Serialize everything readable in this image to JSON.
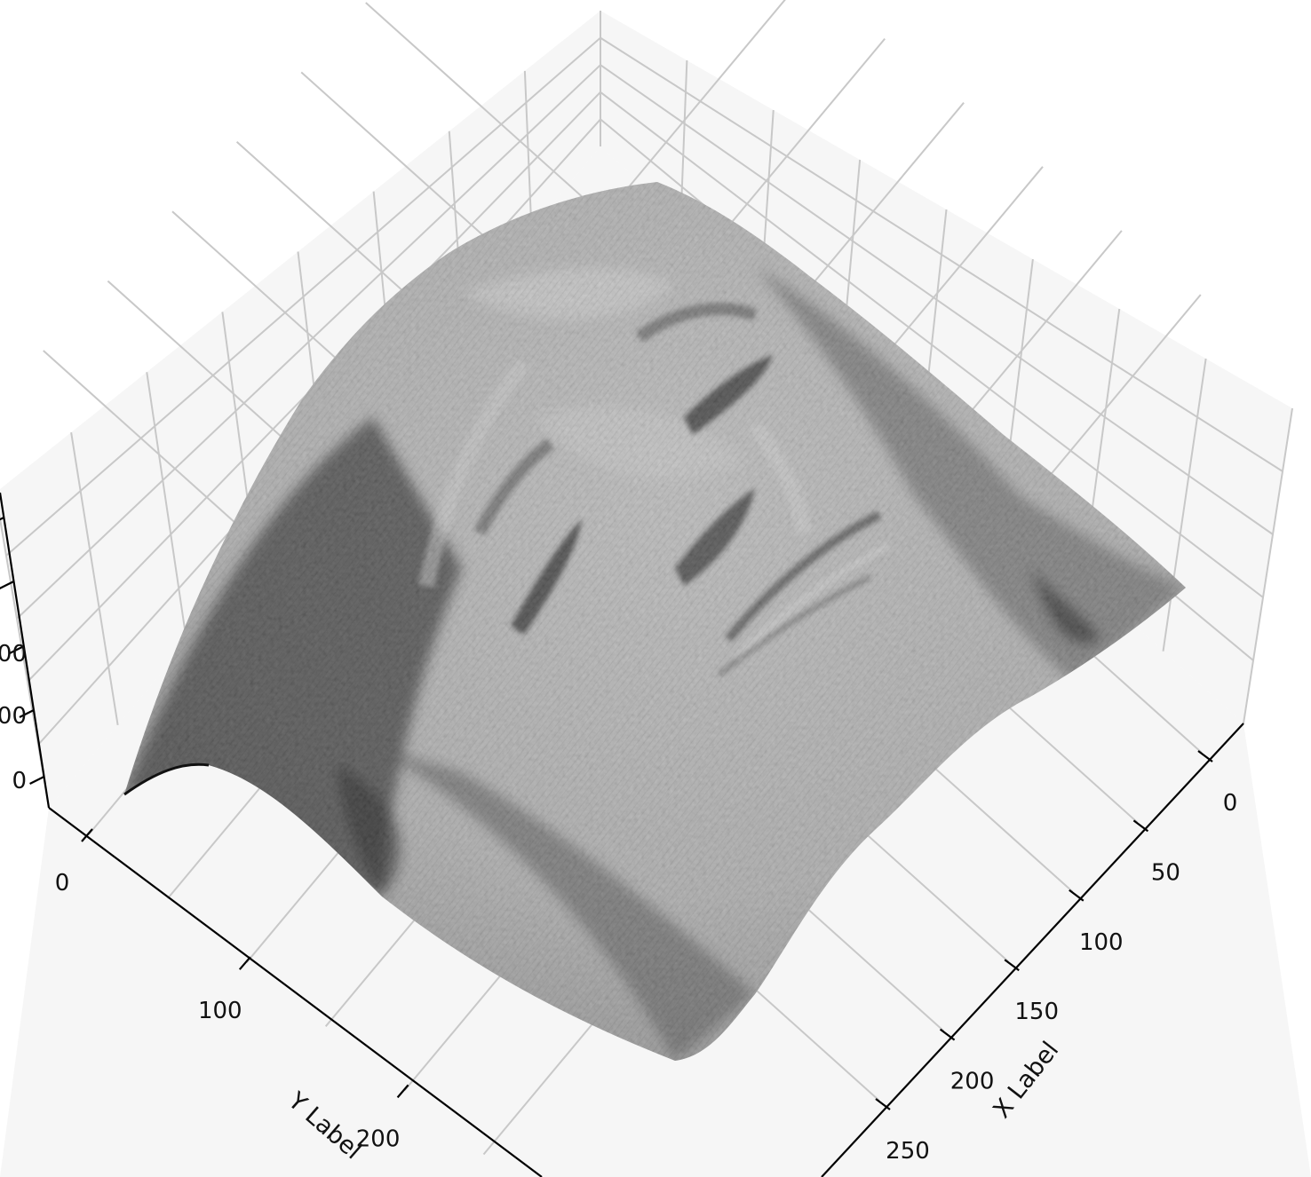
{
  "chart_data": {
    "type": "surface",
    "colormap": "gray",
    "xlabel": "X Label",
    "ylabel": "Y Label",
    "x_ticks": [
      0,
      50,
      100,
      150,
      200,
      250
    ],
    "y_ticks": [
      0,
      100,
      200
    ],
    "z_tick_labels_visible": [
      "0",
      "00",
      "00"
    ],
    "xlim": [
      0,
      270
    ],
    "ylim": [
      0,
      300
    ],
    "grid": true,
    "colors": {
      "pane": "#f6f6f6",
      "grid": "#c8c8c8",
      "axis": "#000000"
    }
  }
}
